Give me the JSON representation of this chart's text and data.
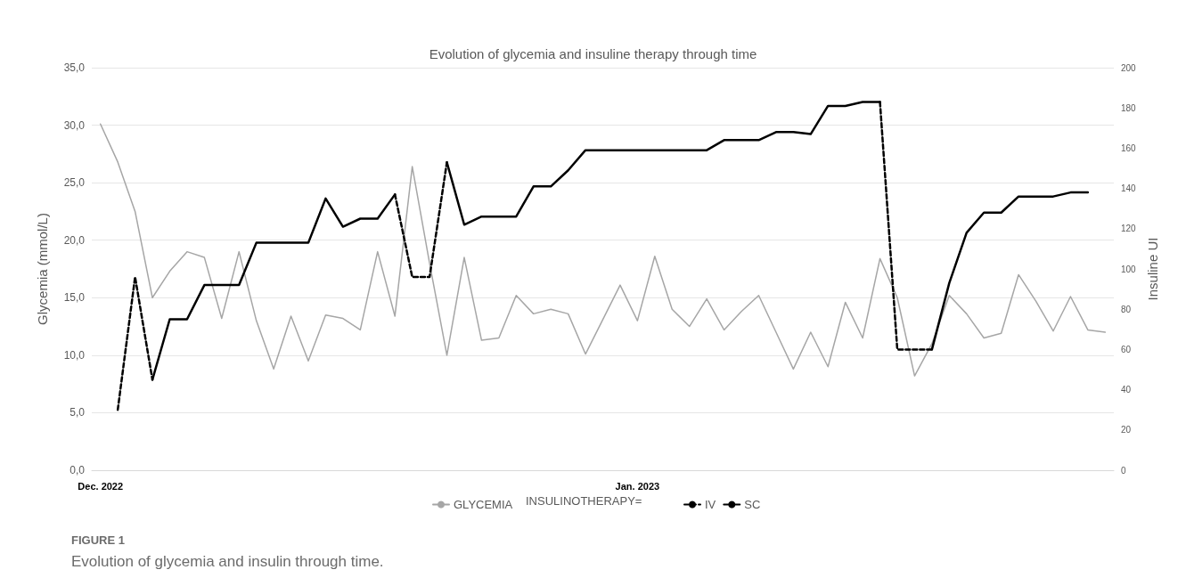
{
  "chart_data": {
    "type": "line",
    "title": "Evolution of glycemia and insuline therapy through time",
    "ylabel": "Glycemia (mmol/L)",
    "y2label": "Insuline UI",
    "legend_title": "INSULINOTHERAPY=",
    "annotations": [
      "FIGURE 1",
      "Evolution of glycemia and insulin through time."
    ],
    "categories": [
      "Dec. 2022",
      null,
      null,
      null,
      null,
      null,
      null,
      null,
      null,
      null,
      null,
      null,
      null,
      null,
      null,
      null,
      null,
      null,
      null,
      null,
      null,
      null,
      null,
      null,
      null,
      null,
      null,
      null,
      null,
      null,
      null,
      "Jan. 2023",
      null,
      null,
      null,
      null,
      null,
      null,
      null,
      null,
      null,
      null,
      null,
      null,
      null,
      null,
      null,
      null,
      null,
      null,
      null,
      null,
      null,
      null,
      null,
      null,
      null,
      null,
      null
    ],
    "series": [
      {
        "name": "GLYCEMIA",
        "color": "#a6a6a6",
        "line_style": "solid",
        "values": [
          30.1,
          26.8,
          22.5,
          15.0,
          17.3,
          19.0,
          18.5,
          13.2,
          19.0,
          13.0,
          8.8,
          13.4,
          9.5,
          13.5,
          13.2,
          12.2,
          19.0,
          13.4,
          26.4,
          18.0,
          10.0,
          18.5,
          11.3,
          11.5,
          15.2,
          13.6,
          14.0,
          13.6,
          10.1,
          13.1,
          16.1,
          13.0,
          18.6,
          14.0,
          12.5,
          14.9,
          12.2,
          13.8,
          15.2,
          12.0,
          8.8,
          12.0,
          9.0,
          14.6,
          11.5,
          18.4,
          15.0,
          8.2,
          11.0,
          15.2,
          13.6,
          11.5,
          11.9,
          17.0,
          14.7,
          12.1,
          15.1,
          12.2,
          12.0
        ]
      },
      {
        "name": "IV",
        "color": "#000000",
        "line_style": "dashed",
        "axis": "y2",
        "values": [
          null,
          30,
          96,
          45,
          null,
          null,
          null,
          null,
          null,
          null,
          null,
          null,
          null,
          null,
          null,
          null,
          null,
          137,
          96,
          96,
          153,
          null,
          null,
          null,
          null,
          null,
          null,
          null,
          null,
          null,
          null,
          null,
          null,
          null,
          null,
          null,
          null,
          null,
          null,
          null,
          null,
          null,
          null,
          null,
          null,
          183,
          60,
          60,
          60,
          null,
          null,
          null,
          null,
          null,
          null,
          null,
          null,
          null,
          null
        ]
      },
      {
        "name": "SC",
        "color": "#000000",
        "line_style": "solid",
        "axis": "y2",
        "values": [
          null,
          null,
          null,
          45,
          75,
          75,
          92,
          92,
          92,
          113,
          113,
          113,
          113,
          135,
          121,
          125,
          125,
          137,
          null,
          null,
          153,
          122,
          126,
          126,
          126,
          141,
          141,
          149,
          159,
          159,
          159,
          159,
          159,
          159,
          159,
          159,
          164,
          164,
          164,
          168,
          168,
          167,
          181,
          181,
          183,
          183,
          null,
          null,
          60,
          93,
          118,
          128,
          128,
          136,
          136,
          136,
          138,
          138,
          null
        ]
      }
    ],
    "ylim": [
      0,
      35
    ],
    "yticks": [
      {
        "value": 0,
        "label": "0,0"
      },
      {
        "value": 5,
        "label": "5,0"
      },
      {
        "value": 10,
        "label": "10,0"
      },
      {
        "value": 15,
        "label": "15,0"
      },
      {
        "value": 20,
        "label": "20,0"
      },
      {
        "value": 25,
        "label": "25,0"
      },
      {
        "value": 30,
        "label": "30,0"
      },
      {
        "value": 35,
        "label": "35,0"
      }
    ],
    "y2lim": [
      0,
      200
    ],
    "y2ticks": [
      0,
      20,
      40,
      60,
      80,
      100,
      120,
      140,
      160,
      180,
      200
    ],
    "grid": "y",
    "legend": "bottom",
    "marker": "none"
  }
}
